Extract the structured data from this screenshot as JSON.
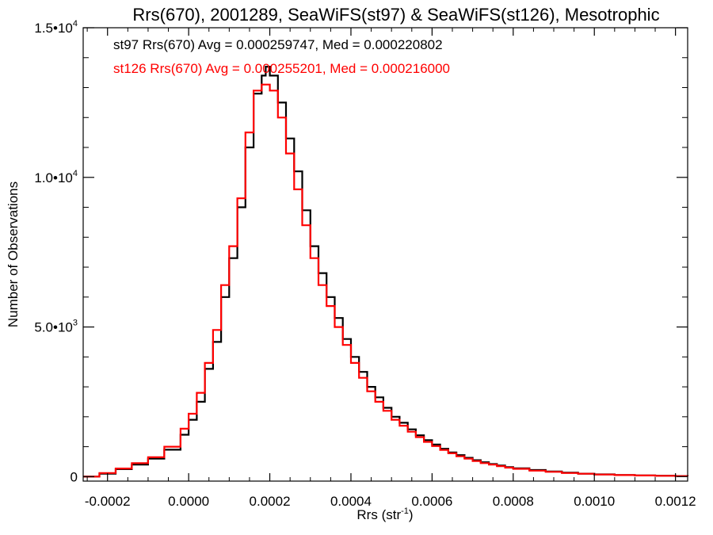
{
  "chart_data": {
    "type": "line",
    "title": "Rrs(670), 2001289, SeaWiFS(st97) & SeaWiFS(st126), Mesotrophic",
    "xlabel": "Rrs (str",
    "xlabel_sup": "-1",
    "xlabel_close": ")",
    "ylabel": "Number of Observations",
    "xlim": [
      -0.00026,
      0.00123
    ],
    "ylim": [
      -150,
      15000
    ],
    "grid": false,
    "x_ticks": [
      {
        "value": -0.0002,
        "label": "-0.0002"
      },
      {
        "value": 0.0,
        "label": "0.0000"
      },
      {
        "value": 0.0002,
        "label": "0.0002"
      },
      {
        "value": 0.0004,
        "label": "0.0004"
      },
      {
        "value": 0.0006,
        "label": "0.0006"
      },
      {
        "value": 0.0008,
        "label": "0.0008"
      },
      {
        "value": 0.001,
        "label": "0.0010"
      },
      {
        "value": 0.0012,
        "label": "0.0012"
      }
    ],
    "y_ticks": [
      {
        "value": 0,
        "base": "0",
        "exp": ""
      },
      {
        "value": 5000,
        "base": "5.0•10",
        "exp": "3"
      },
      {
        "value": 10000,
        "base": "1.0•10",
        "exp": "4"
      },
      {
        "value": 15000,
        "base": "1.5•10",
        "exp": "4"
      }
    ],
    "annotations": [
      {
        "text": "st97 Rrs(670) Avg = 0.000259747, Med = 0.000220802",
        "color": "#000000"
      },
      {
        "text": "st126 Rrs(670) Avg = 0.000255201, Med = 0.000216000",
        "color": "#ff0000"
      }
    ],
    "series": [
      {
        "name": "st97",
        "color": "#000000",
        "x": [
          -0.00026,
          -0.00022,
          -0.00018,
          -0.00014,
          -0.0001,
          -6e-05,
          -2e-05,
          0.0,
          2e-05,
          4e-05,
          6e-05,
          8e-05,
          0.0001,
          0.00012,
          0.00014,
          0.00016,
          0.00018,
          0.00019,
          0.0002,
          0.00022,
          0.00024,
          0.00026,
          0.00028,
          0.0003,
          0.00032,
          0.00034,
          0.00036,
          0.00038,
          0.0004,
          0.00042,
          0.00044,
          0.00046,
          0.00048,
          0.0005,
          0.00052,
          0.00054,
          0.00056,
          0.00058,
          0.0006,
          0.00062,
          0.00064,
          0.00066,
          0.00068,
          0.0007,
          0.00072,
          0.00074,
          0.00076,
          0.00078,
          0.0008,
          0.00084,
          0.00088,
          0.00092,
          0.00096,
          0.001,
          0.00105,
          0.0011,
          0.00115,
          0.0012,
          0.00123
        ],
        "y": [
          0,
          100,
          250,
          400,
          600,
          900,
          1400,
          1900,
          2500,
          3600,
          4500,
          6000,
          7300,
          9000,
          11000,
          12800,
          13400,
          13700,
          13400,
          12500,
          11300,
          10200,
          8900,
          7700,
          6800,
          6000,
          5300,
          4600,
          4000,
          3500,
          3000,
          2650,
          2300,
          2000,
          1800,
          1580,
          1380,
          1220,
          1070,
          930,
          810,
          720,
          630,
          550,
          480,
          420,
          370,
          320,
          280,
          220,
          170,
          130,
          100,
          75,
          55,
          40,
          30,
          20,
          15
        ]
      },
      {
        "name": "st126",
        "color": "#ff0000",
        "x": [
          -0.00026,
          -0.00022,
          -0.00018,
          -0.00014,
          -0.0001,
          -6e-05,
          -2e-05,
          0.0,
          2e-05,
          4e-05,
          6e-05,
          8e-05,
          0.0001,
          0.00012,
          0.00014,
          0.00016,
          0.00018,
          0.00019,
          0.0002,
          0.00022,
          0.00024,
          0.00026,
          0.00028,
          0.0003,
          0.00032,
          0.00034,
          0.00036,
          0.00038,
          0.0004,
          0.00042,
          0.00044,
          0.00046,
          0.00048,
          0.0005,
          0.00052,
          0.00054,
          0.00056,
          0.00058,
          0.0006,
          0.00062,
          0.00064,
          0.00066,
          0.00068,
          0.0007,
          0.00072,
          0.00074,
          0.00076,
          0.00078,
          0.0008,
          0.00084,
          0.00088,
          0.00092,
          0.00096,
          0.001,
          0.00105,
          0.0011,
          0.00115,
          0.0012,
          0.00123
        ],
        "y": [
          0,
          120,
          270,
          450,
          650,
          1000,
          1600,
          2100,
          2800,
          3800,
          4900,
          6400,
          7700,
          9300,
          11500,
          12900,
          13100,
          13100,
          12900,
          12000,
          10800,
          9600,
          8400,
          7300,
          6400,
          5700,
          5000,
          4400,
          3800,
          3300,
          2850,
          2500,
          2200,
          1900,
          1700,
          1500,
          1320,
          1160,
          1020,
          890,
          780,
          680,
          600,
          520,
          450,
          400,
          350,
          300,
          260,
          200,
          160,
          120,
          95,
          70,
          50,
          38,
          28,
          18,
          12
        ]
      }
    ]
  }
}
